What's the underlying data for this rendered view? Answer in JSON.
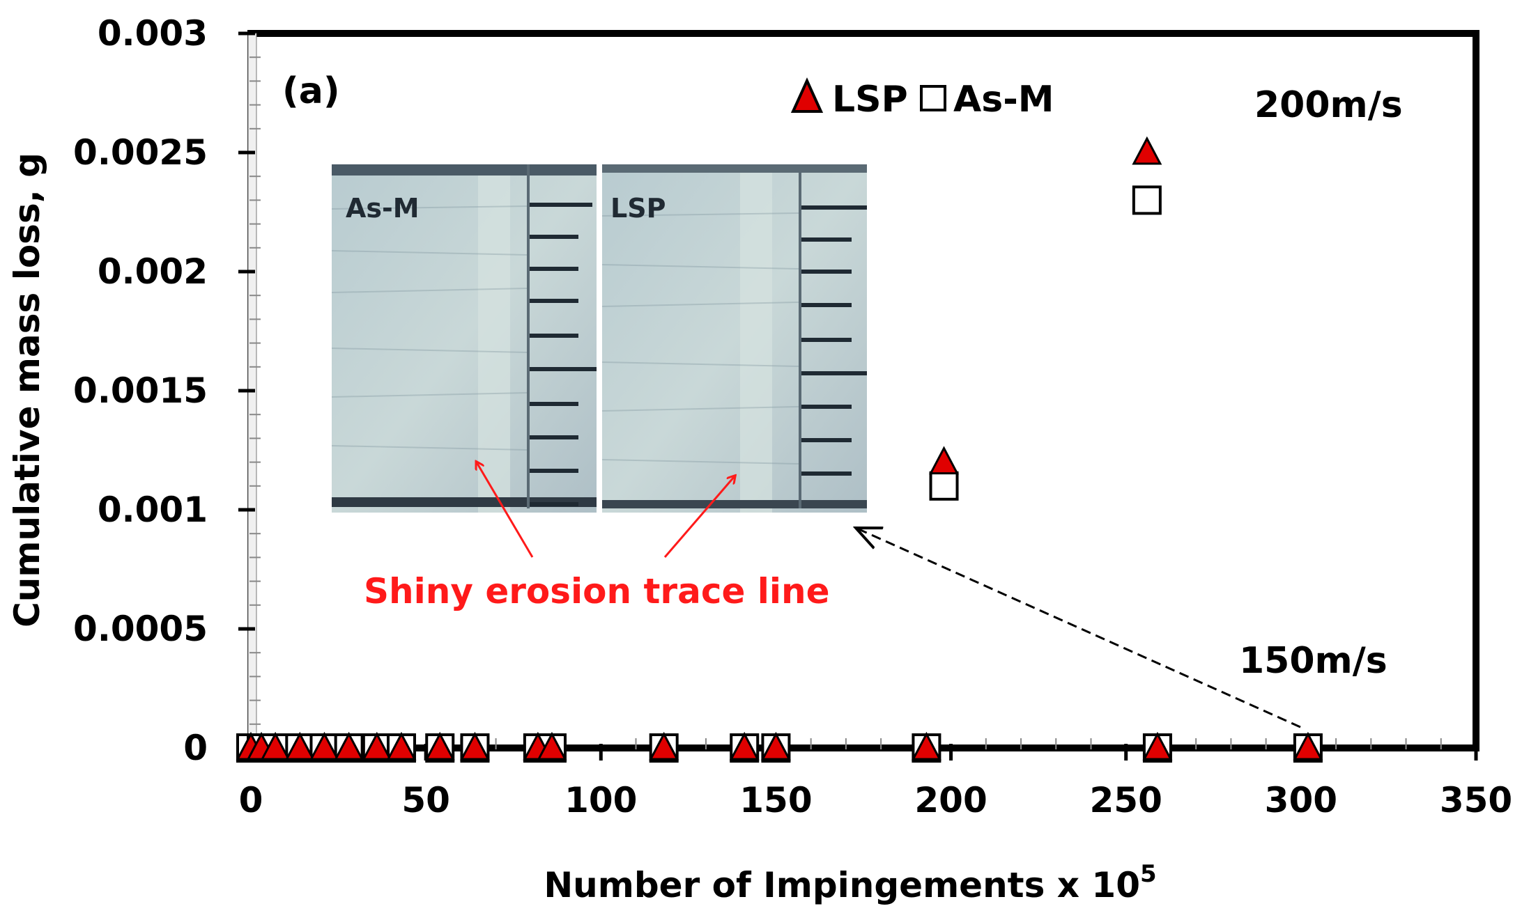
{
  "chart_data": {
    "type": "scatter",
    "panel_label": "(a)",
    "xlabel": "Number of Impingements x 10",
    "xlabel_superscript": "5",
    "ylabel": "Cumulative mass loss, g",
    "xlim": [
      0,
      350
    ],
    "ylim": [
      0,
      0.003
    ],
    "x_ticks": [
      0,
      50,
      100,
      150,
      200,
      250,
      300,
      350
    ],
    "x_tick_labels": [
      "0",
      "50",
      "100",
      "150",
      "200",
      "250",
      "300",
      "350"
    ],
    "y_ticks": [
      0,
      0.0005,
      0.001,
      0.0015,
      0.002,
      0.0025,
      0.003
    ],
    "y_tick_labels": [
      "0",
      "0.0005",
      "0.001",
      "0.0015",
      "0.002",
      "0.0025",
      "0.003"
    ],
    "grid": false,
    "legend_position": "top-center",
    "series": [
      {
        "name": "LSP",
        "marker": "triangle",
        "color": "#e00000",
        "points": [
          {
            "x": 0,
            "y": 0
          },
          {
            "x": 3,
            "y": 0
          },
          {
            "x": 7,
            "y": 0
          },
          {
            "x": 14,
            "y": 0
          },
          {
            "x": 21,
            "y": 0
          },
          {
            "x": 28,
            "y": 0
          },
          {
            "x": 36,
            "y": 0
          },
          {
            "x": 43,
            "y": 0
          },
          {
            "x": 54,
            "y": 0
          },
          {
            "x": 64,
            "y": 0
          },
          {
            "x": 82,
            "y": 0
          },
          {
            "x": 86,
            "y": 0
          },
          {
            "x": 118,
            "y": 0
          },
          {
            "x": 141,
            "y": 0
          },
          {
            "x": 150,
            "y": 0
          },
          {
            "x": 193,
            "y": 0
          },
          {
            "x": 259,
            "y": 0
          },
          {
            "x": 302,
            "y": 0
          },
          {
            "x": 198,
            "y": 0.0012
          },
          {
            "x": 256,
            "y": 0.0025
          }
        ]
      },
      {
        "name": "As-M",
        "marker": "square",
        "color": "#ffffff",
        "points": [
          {
            "x": 0,
            "y": 0
          },
          {
            "x": 3,
            "y": 0
          },
          {
            "x": 7,
            "y": 0
          },
          {
            "x": 14,
            "y": 0
          },
          {
            "x": 21,
            "y": 0
          },
          {
            "x": 28,
            "y": 0
          },
          {
            "x": 36,
            "y": 0
          },
          {
            "x": 43,
            "y": 0
          },
          {
            "x": 54,
            "y": 0
          },
          {
            "x": 64,
            "y": 0
          },
          {
            "x": 82,
            "y": 0
          },
          {
            "x": 86,
            "y": 0
          },
          {
            "x": 118,
            "y": 0
          },
          {
            "x": 141,
            "y": 0
          },
          {
            "x": 150,
            "y": 0
          },
          {
            "x": 193,
            "y": 0
          },
          {
            "x": 259,
            "y": 0
          },
          {
            "x": 302,
            "y": 0
          },
          {
            "x": 198,
            "y": 0.0011
          },
          {
            "x": 256,
            "y": 0.0023
          }
        ]
      }
    ],
    "annotations": {
      "speed_high": "200m/s",
      "speed_low": "150m/s",
      "trace_label": "Shiny erosion trace line",
      "inset_left_label": "As-M",
      "inset_right_label": "LSP"
    }
  }
}
